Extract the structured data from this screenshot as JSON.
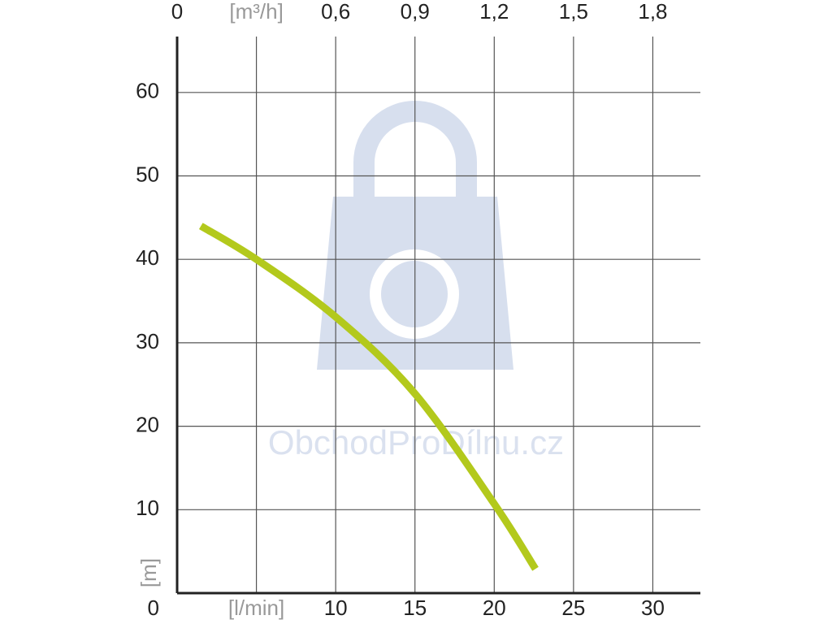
{
  "chart_data": {
    "type": "line",
    "x_label": "[l/min]",
    "y_label": "[m]",
    "x2_label": "[m³/h]",
    "watermark": "ObchodProDílnu.cz",
    "xlim": [
      0,
      33
    ],
    "xticks": [
      {
        "value": 5,
        "label": "[l/min]"
      },
      10,
      15,
      20,
      25,
      30
    ],
    "x2lim": [
      0,
      1.98
    ],
    "x2ticks": [
      0,
      {
        "value": 0.3,
        "label": "[m³/h]"
      },
      {
        "value": 0.6,
        "label": "0,6"
      },
      {
        "value": 0.9,
        "label": "0,9"
      },
      {
        "value": 1.2,
        "label": "1,2"
      },
      {
        "value": 1.5,
        "label": "1,5"
      },
      {
        "value": 1.8,
        "label": "1,8"
      }
    ],
    "ylim": [
      0,
      66.7
    ],
    "yticks": [
      0,
      10,
      20,
      30,
      40,
      50,
      60
    ],
    "grid": true,
    "series": [
      {
        "color": "#b3c91c",
        "x": [
          1.5,
          5,
          10,
          15,
          20,
          22.6
        ],
        "values": [
          44,
          40,
          33.1,
          23.9,
          10.7,
          2.9
        ]
      }
    ]
  }
}
